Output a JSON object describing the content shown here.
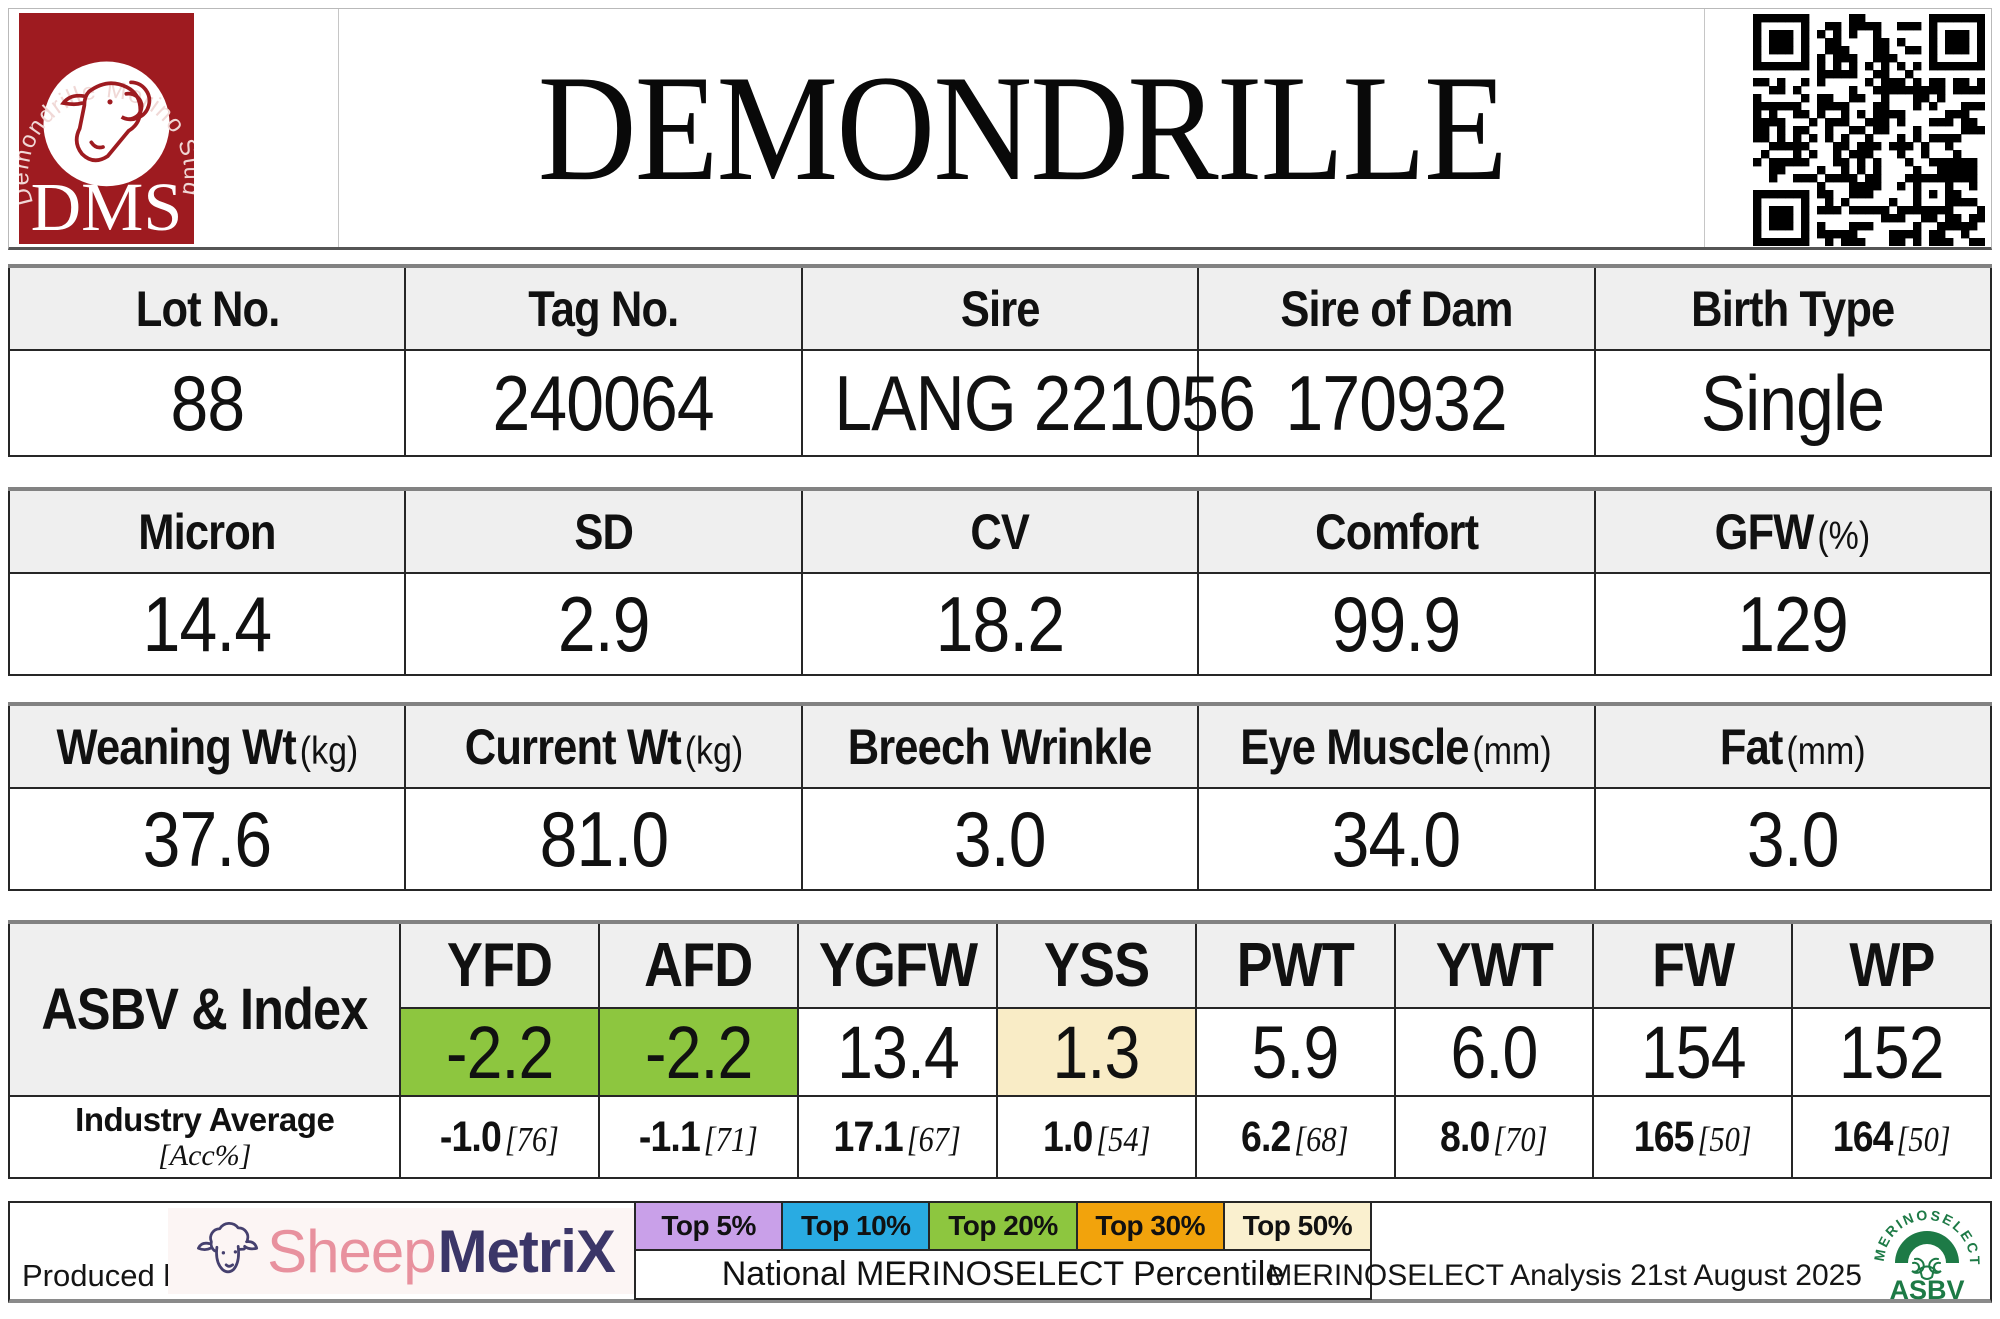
{
  "header": {
    "title": "DEMONDRILLE",
    "stud_logo": {
      "arc_text": "Demondrille Merino Stud",
      "initials": "DMS",
      "red": "#9e1b20"
    }
  },
  "identity_table": {
    "headers": [
      "Lot No.",
      "Tag No.",
      "Sire",
      "Sire of Dam",
      "Birth Type"
    ],
    "values": [
      "88",
      "240064",
      "LANG 221056",
      "170932",
      "Single"
    ]
  },
  "wool_table": {
    "headers": [
      {
        "label": "Micron",
        "unit": ""
      },
      {
        "label": "SD",
        "unit": ""
      },
      {
        "label": "CV",
        "unit": ""
      },
      {
        "label": "Comfort",
        "unit": ""
      },
      {
        "label": "GFW",
        "unit": "(%)"
      }
    ],
    "values": [
      "14.4",
      "2.9",
      "18.2",
      "99.9",
      "129"
    ]
  },
  "body_table": {
    "headers": [
      {
        "label": "Weaning Wt",
        "unit": "(kg)"
      },
      {
        "label": "Current Wt",
        "unit": "(kg)"
      },
      {
        "label": "Breech Wrinkle",
        "unit": ""
      },
      {
        "label": "Eye Muscle",
        "unit": "(mm)"
      },
      {
        "label": "Fat",
        "unit": "(mm)"
      }
    ],
    "values": [
      "37.6",
      "81.0",
      "3.0",
      "34.0",
      "3.0"
    ]
  },
  "asbv_table": {
    "row_label": "ASBV & Index",
    "industry_label": "Industry Average",
    "industry_sublabel": "[Acc%]",
    "columns": [
      {
        "name": "YFD",
        "value": "-2.2",
        "cell_bg": "#8dc63f",
        "industry": "-1.0",
        "acc": "[76]"
      },
      {
        "name": "AFD",
        "value": "-2.2",
        "cell_bg": "#8dc63f",
        "industry": "-1.1",
        "acc": "[71]"
      },
      {
        "name": "YGFW",
        "value": "13.4",
        "cell_bg": "#ffffff",
        "industry": "17.1",
        "acc": "[67]"
      },
      {
        "name": "YSS",
        "value": "1.3",
        "cell_bg": "#f9ecc6",
        "industry": "1.0",
        "acc": "[54]"
      },
      {
        "name": "PWT",
        "value": "5.9",
        "cell_bg": "#ffffff",
        "industry": "6.2",
        "acc": "[68]"
      },
      {
        "name": "YWT",
        "value": "6.0",
        "cell_bg": "#ffffff",
        "industry": "8.0",
        "acc": "[70]"
      },
      {
        "name": "FW",
        "value": "154",
        "cell_bg": "#ffffff",
        "industry": "165",
        "acc": "[50]"
      },
      {
        "name": "WP",
        "value": "152",
        "cell_bg": "#ffffff",
        "industry": "164",
        "acc": "[50]"
      }
    ]
  },
  "footer": {
    "produced_by": "Produced by:",
    "sheepmetrix": {
      "word1": "Sheep",
      "word2": "MetriX"
    },
    "legend": [
      {
        "label": "Top 5%",
        "color": "#c9a0e9"
      },
      {
        "label": "Top 10%",
        "color": "#29abe2"
      },
      {
        "label": "Top 20%",
        "color": "#8dc63f"
      },
      {
        "label": "Top 30%",
        "color": "#f2a30c"
      },
      {
        "label": "Top 50%",
        "color": "#faf0cf"
      }
    ],
    "legend_caption": "National MERINOSELECT Percentile",
    "analysis_note": "MERINOSELECT Analysis 21st August 2025",
    "merinoselect_logo": {
      "arc_text": "MERINOSELECT",
      "sub_text": "ASBV",
      "green": "#1d7a46"
    }
  }
}
